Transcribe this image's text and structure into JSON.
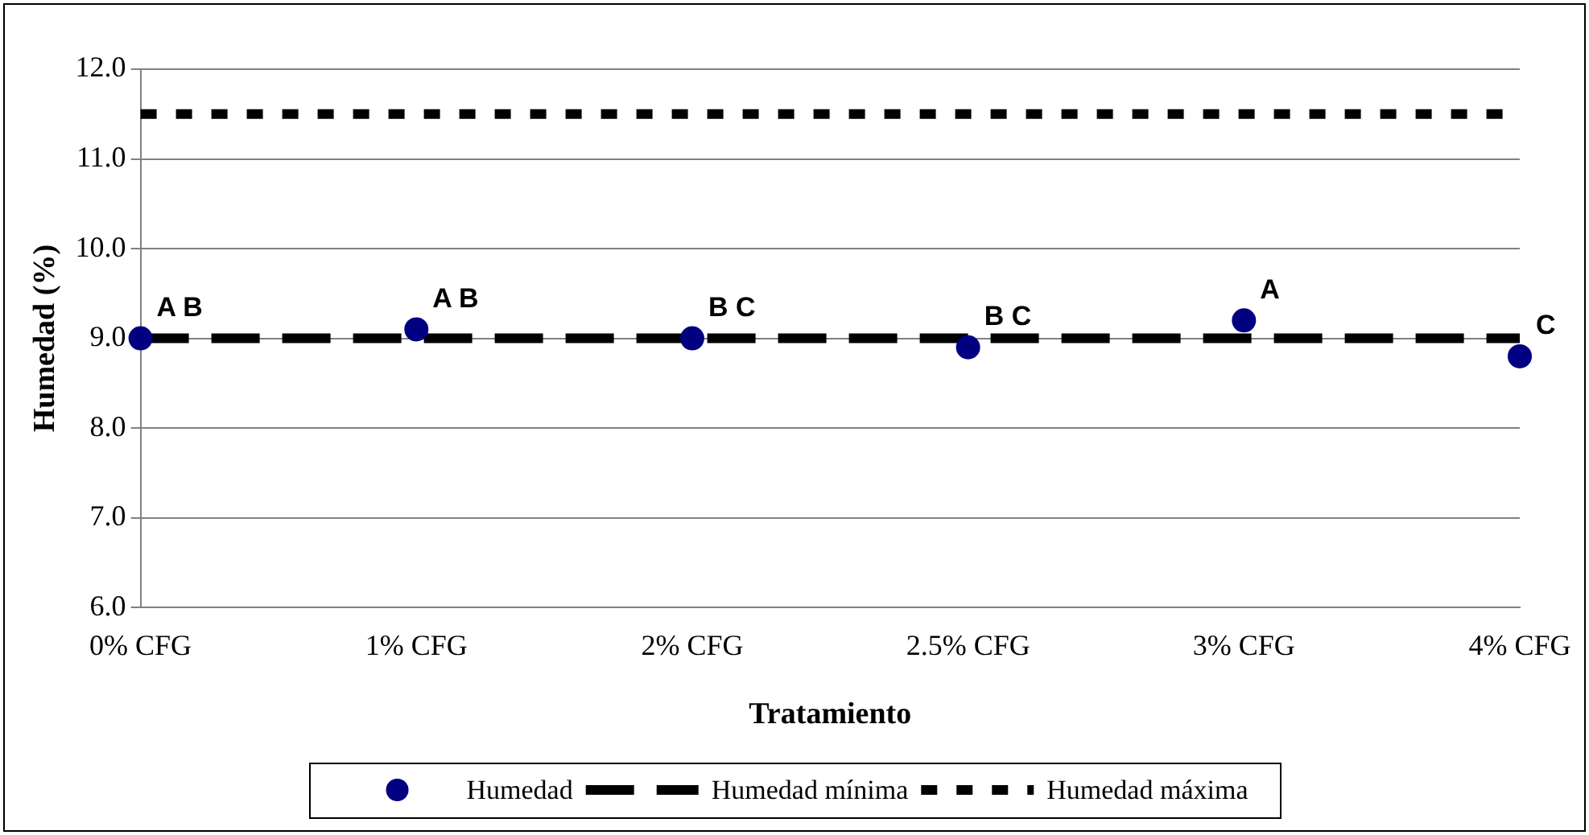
{
  "chart_data": {
    "type": "scatter",
    "xlabel": "Tratamiento",
    "ylabel": "Humedad (%)",
    "categories": [
      "0% CFG",
      "1% CFG",
      "2% CFG",
      "2.5% CFG",
      "3% CFG",
      "4% CFG"
    ],
    "series": [
      {
        "name": "Humedad",
        "color": "#000080",
        "marker": "circle",
        "values": [
          9.0,
          9.1,
          9.0,
          8.9,
          9.2,
          8.8
        ]
      },
      {
        "name": "Humedad mínima",
        "type": "line",
        "color": "#000000",
        "marker": "none",
        "line_style": "dashed",
        "values": [
          9.0,
          9.0,
          9.0,
          9.0,
          9.0,
          9.0
        ]
      },
      {
        "name": "Humedad máxima",
        "type": "line",
        "color": "#000000",
        "marker": "none",
        "line_style": "dotted",
        "values": [
          11.5,
          11.5,
          11.5,
          11.5,
          11.5,
          11.5
        ]
      }
    ],
    "ylim": [
      6,
      12
    ],
    "yticks": [
      {
        "value": 6,
        "label": "6.0"
      },
      {
        "value": 7,
        "label": "7.0"
      },
      {
        "value": 8,
        "label": "8.0"
      },
      {
        "value": 9,
        "label": "9.0"
      },
      {
        "value": 10,
        "label": "10.0"
      },
      {
        "value": 11,
        "label": "11.0"
      },
      {
        "value": 12,
        "label": "12.0"
      }
    ],
    "grid": "y",
    "legend": "bottom",
    "annotations": [
      {
        "text": "A B",
        "x": "0% CFG",
        "y": 9.0
      },
      {
        "text": "A B",
        "x": "1% CFG",
        "y": 9.1
      },
      {
        "text": "B C",
        "x": "2% CFG",
        "y": 9.0
      },
      {
        "text": "B C",
        "x": "2.5% CFG",
        "y": 8.9
      },
      {
        "text": "A",
        "x": "3% CFG",
        "y": 9.2
      },
      {
        "text": "C",
        "x": "4% CFG",
        "y": 8.8
      }
    ]
  }
}
